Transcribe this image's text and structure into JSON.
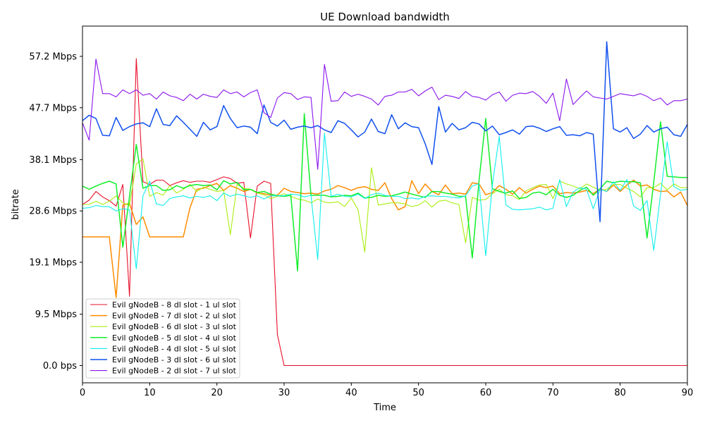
{
  "chart_data": {
    "type": "line",
    "title": "UE Download bandwidth",
    "xlabel": "Time",
    "ylabel": "bitrate",
    "xlim": [
      0,
      90
    ],
    "ylim": [
      -3.2,
      62.8
    ],
    "xticks": [
      0,
      10,
      20,
      30,
      40,
      50,
      60,
      70,
      80,
      90
    ],
    "yticks": [
      {
        "value": 0.0,
        "label": "0.0 bps"
      },
      {
        "value": 9.5,
        "label": "9.5 Mbps"
      },
      {
        "value": 19.1,
        "label": "19.1 Mbps"
      },
      {
        "value": 28.6,
        "label": "28.6 Mbps"
      },
      {
        "value": 38.1,
        "label": "38.1 Mbps"
      },
      {
        "value": 47.7,
        "label": "47.7 Mbps"
      },
      {
        "value": 57.2,
        "label": "57.2 Mbps"
      }
    ],
    "grid": false,
    "legend_position": "lower-left",
    "series": [
      {
        "name": "Evil gNodeB - 8 dl slot - 1 ul slot",
        "color": "#e8102a",
        "width": 1.1,
        "x": [
          0,
          1,
          2,
          3,
          4,
          5,
          6,
          7,
          8,
          9,
          10,
          11,
          12,
          13,
          14,
          15,
          16,
          17,
          18,
          19,
          20,
          21,
          22,
          23,
          24,
          25,
          26,
          27,
          28,
          29,
          30,
          35,
          40,
          45,
          50,
          55,
          60,
          65,
          70,
          75,
          80,
          85,
          90
        ],
        "y": [
          29.8,
          30.6,
          32.2,
          31.2,
          30.5,
          29.5,
          33.5,
          12.8,
          56.8,
          34.0,
          33.5,
          34.3,
          34.3,
          33.3,
          33.8,
          34.2,
          33.9,
          34.1,
          34.1,
          33.9,
          34.4,
          34.9,
          34.6,
          33.7,
          33.9,
          23.6,
          33.2,
          34.1,
          33.7,
          5.7,
          0.0,
          0.0,
          0.0,
          0.0,
          0.0,
          0.0,
          0.0,
          0.0,
          0.0,
          0.0,
          0.0,
          0.0,
          0.0
        ]
      },
      {
        "name": "Evil gNodeB - 7 dl slot - 2 ul slot",
        "color": "#ff8c00",
        "width": 1.5,
        "x": [
          0,
          1,
          2,
          3,
          4,
          5,
          6,
          7,
          8,
          9,
          10,
          11,
          12,
          13,
          14,
          15,
          16,
          17,
          18,
          19,
          20,
          21,
          22,
          23,
          24,
          25,
          26,
          27,
          28,
          29,
          30,
          31,
          32,
          33,
          34,
          35,
          36,
          37,
          38,
          39,
          40,
          41,
          42,
          43,
          44,
          45,
          46,
          47,
          48,
          49,
          50,
          51,
          52,
          53,
          54,
          55,
          56,
          57,
          58,
          59,
          60,
          61,
          62,
          63,
          64,
          65,
          66,
          67,
          68,
          69,
          70,
          71,
          72,
          73,
          74,
          75,
          76,
          77,
          78,
          79,
          80,
          81,
          82,
          83,
          84,
          85,
          86,
          87,
          88,
          89,
          90
        ],
        "y": [
          23.8,
          23.8,
          23.8,
          23.8,
          23.8,
          12.6,
          29.7,
          30.0,
          26.1,
          27.5,
          23.8,
          23.8,
          23.8,
          23.8,
          23.8,
          23.8,
          29.2,
          32.6,
          32.8,
          33.3,
          33.7,
          32.4,
          33.3,
          32.8,
          32.2,
          32.6,
          31.9,
          31.8,
          31.5,
          31.5,
          32.8,
          32.2,
          32.0,
          31.8,
          31.9,
          31.7,
          32.3,
          32.6,
          33.3,
          32.9,
          32.4,
          32.9,
          33.1,
          32.6,
          32.4,
          33.8,
          30.9,
          28.8,
          29.4,
          34.2,
          31.8,
          33.6,
          32.2,
          31.6,
          33.4,
          31.8,
          31.9,
          31.7,
          33.8,
          33.6,
          31.6,
          32.0,
          33.3,
          32.6,
          31.7,
          32.9,
          31.9,
          32.6,
          33.2,
          32.9,
          33.2,
          31.8,
          32.0,
          31.9,
          32.1,
          32.4,
          31.8,
          32.7,
          32.2,
          33.4,
          32.2,
          33.4,
          34.3,
          33.2,
          33.4,
          32.6,
          32.2,
          32.3,
          31.2,
          32.1,
          29.6
        ]
      },
      {
        "name": "Evil gNodeB - 6 dl slot - 3 ul slot",
        "color": "#aaee10",
        "width": 1.1,
        "x": [
          0,
          1,
          2,
          3,
          4,
          5,
          6,
          7,
          8,
          9,
          10,
          11,
          12,
          13,
          14,
          15,
          16,
          17,
          18,
          19,
          20,
          21,
          22,
          23,
          24,
          25,
          26,
          27,
          28,
          29,
          30,
          31,
          32,
          33,
          34,
          35,
          36,
          37,
          38,
          39,
          40,
          41,
          42,
          43,
          44,
          45,
          46,
          47,
          48,
          49,
          50,
          51,
          52,
          53,
          54,
          55,
          56,
          57,
          58,
          59,
          60,
          61,
          62,
          63,
          64,
          65,
          66,
          67,
          68,
          69,
          70,
          71,
          72,
          73,
          74,
          75,
          76,
          77,
          78,
          79,
          80,
          81,
          82,
          83,
          84,
          85,
          86,
          87,
          88,
          89,
          90
        ],
        "y": [
          29.8,
          29.8,
          30.4,
          29.8,
          30.4,
          31.4,
          30.1,
          29.6,
          37.3,
          38.2,
          31.3,
          32.0,
          31.5,
          33.3,
          31.9,
          32.6,
          33.5,
          32.2,
          33.0,
          32.6,
          32.2,
          32.4,
          24.2,
          33.5,
          32.8,
          32.6,
          31.9,
          31.6,
          30.9,
          31.3,
          31.8,
          31.3,
          30.8,
          30.6,
          30.1,
          30.8,
          30.2,
          30.1,
          30.3,
          29.4,
          31.0,
          28.8,
          21.0,
          36.6,
          29.7,
          29.9,
          30.1,
          30.1,
          29.9,
          29.4,
          29.7,
          30.5,
          29.3,
          30.4,
          30.6,
          30.1,
          29.8,
          22.7,
          31.1,
          30.6,
          30.7,
          31.8,
          32.6,
          31.6,
          31.4,
          30.7,
          32.3,
          32.9,
          33.4,
          33.5,
          30.9,
          34.1,
          33.6,
          33.2,
          32.7,
          33.6,
          33.0,
          32.4,
          32.6,
          33.5,
          33.5,
          32.8,
          32.2,
          31.2,
          32.9,
          32.9,
          33.7,
          32.5,
          33.6,
          32.9,
          32.9
        ]
      },
      {
        "name": "Evil gNodeB - 5 dl slot - 4 ul slot",
        "color": "#12ee2a",
        "width": 1.5,
        "x": [
          0,
          1,
          2,
          3,
          4,
          5,
          6,
          7,
          8,
          9,
          10,
          11,
          12,
          13,
          14,
          15,
          16,
          17,
          18,
          19,
          20,
          21,
          22,
          23,
          24,
          25,
          26,
          27,
          28,
          29,
          30,
          31,
          32,
          33,
          34,
          35,
          36,
          37,
          38,
          39,
          40,
          41,
          42,
          43,
          44,
          45,
          46,
          47,
          48,
          49,
          50,
          51,
          52,
          53,
          54,
          55,
          56,
          57,
          58,
          59,
          60,
          61,
          62,
          63,
          64,
          65,
          66,
          67,
          68,
          69,
          70,
          71,
          72,
          73,
          74,
          75,
          76,
          77,
          78,
          79,
          80,
          81,
          82,
          83,
          84,
          85,
          86,
          87,
          88,
          89,
          90
        ],
        "y": [
          33.2,
          32.6,
          33.2,
          33.7,
          34.1,
          33.6,
          21.9,
          31.3,
          40.9,
          32.8,
          33.3,
          33.3,
          32.4,
          32.5,
          33.3,
          32.8,
          33.3,
          33.5,
          33.3,
          33.4,
          32.5,
          34.2,
          33.6,
          33.9,
          32.5,
          32.6,
          32.0,
          32.2,
          31.7,
          31.4,
          31.3,
          31.5,
          17.5,
          46.6,
          31.5,
          31.5,
          31.5,
          31.2,
          31.3,
          31.5,
          31.4,
          31.9,
          31.0,
          31.1,
          31.5,
          31.3,
          31.4,
          31.7,
          32.1,
          31.7,
          31.4,
          31.1,
          32.2,
          32.2,
          31.9,
          31.7,
          31.3,
          31.3,
          19.9,
          34.2,
          45.7,
          32.7,
          32.2,
          31.9,
          32.3,
          30.9,
          31.1,
          31.9,
          32.1,
          31.6,
          32.6,
          31.5,
          31.1,
          31.5,
          32.4,
          33.0,
          31.5,
          32.7,
          34.1,
          33.8,
          34.1,
          34.0,
          34.0,
          33.8,
          23.6,
          33.9,
          45.1,
          35.0,
          34.9,
          34.8,
          34.8
        ]
      },
      {
        "name": "Evil gNodeB - 4 dl slot - 5 ul slot",
        "color": "#10eeee",
        "width": 1.1,
        "x": [
          0,
          1,
          2,
          3,
          4,
          5,
          6,
          7,
          8,
          9,
          10,
          11,
          12,
          13,
          14,
          15,
          16,
          17,
          18,
          19,
          20,
          21,
          22,
          23,
          24,
          25,
          26,
          27,
          28,
          29,
          30,
          31,
          32,
          33,
          34,
          35,
          36,
          37,
          38,
          39,
          40,
          41,
          42,
          43,
          44,
          45,
          46,
          47,
          48,
          49,
          50,
          51,
          52,
          53,
          54,
          55,
          56,
          57,
          58,
          59,
          60,
          61,
          62,
          63,
          64,
          65,
          66,
          67,
          68,
          69,
          70,
          71,
          72,
          73,
          74,
          75,
          76,
          77,
          78,
          79,
          80,
          81,
          82,
          83,
          84,
          85,
          86,
          87,
          88,
          89,
          90
        ],
        "y": [
          29.1,
          29.2,
          29.6,
          29.4,
          29.4,
          28.6,
          29.0,
          28.8,
          17.9,
          31.4,
          34.1,
          29.9,
          29.6,
          30.9,
          31.2,
          31.4,
          31.0,
          31.3,
          31.1,
          31.4,
          30.5,
          31.9,
          31.3,
          31.7,
          31.4,
          31.1,
          31.4,
          30.8,
          31.4,
          31.4,
          31.4,
          31.7,
          31.6,
          31.2,
          31.5,
          19.6,
          43.0,
          31.3,
          31.7,
          31.3,
          31.2,
          31.7,
          30.9,
          31.6,
          31.9,
          31.5,
          31.3,
          31.3,
          30.9,
          31.0,
          30.8,
          31.3,
          31.4,
          31.3,
          31.3,
          31.1,
          31.0,
          31.4,
          33.2,
          33.6,
          20.3,
          33.5,
          42.4,
          29.7,
          28.9,
          28.8,
          28.9,
          29.0,
          29.3,
          28.8,
          29.1,
          34.4,
          29.4,
          32.1,
          32.9,
          32.6,
          29.0,
          32.6,
          32.2,
          34.0,
          32.4,
          34.4,
          29.5,
          28.7,
          30.5,
          21.3,
          31.6,
          41.4,
          33.1,
          32.4,
          32.6
        ]
      },
      {
        "name": "Evil gNodeB - 3 dl slot - 6 ul slot",
        "color": "#1050f0",
        "width": 1.5,
        "x": [
          0,
          1,
          2,
          3,
          4,
          5,
          6,
          7,
          8,
          9,
          10,
          11,
          12,
          13,
          14,
          15,
          16,
          17,
          18,
          19,
          20,
          21,
          22,
          23,
          24,
          25,
          26,
          27,
          28,
          29,
          30,
          31,
          32,
          33,
          34,
          35,
          36,
          37,
          38,
          39,
          40,
          41,
          42,
          43,
          44,
          45,
          46,
          47,
          48,
          49,
          50,
          51,
          52,
          53,
          54,
          55,
          56,
          57,
          58,
          59,
          60,
          61,
          62,
          63,
          64,
          65,
          66,
          67,
          68,
          69,
          70,
          71,
          72,
          73,
          74,
          75,
          76,
          77,
          78,
          79,
          80,
          81,
          82,
          83,
          84,
          85,
          86,
          87,
          88,
          89,
          90
        ],
        "y": [
          45.3,
          46.3,
          45.7,
          42.6,
          42.5,
          45.9,
          43.5,
          44.2,
          44.7,
          44.9,
          44.2,
          47.5,
          44.6,
          44.4,
          46.2,
          45.0,
          43.7,
          42.4,
          45.0,
          43.6,
          44.2,
          48.1,
          45.7,
          44.0,
          44.3,
          44.1,
          42.9,
          48.2,
          45.0,
          44.3,
          45.4,
          43.7,
          44.1,
          44.3,
          44.0,
          44.4,
          43.6,
          43.1,
          45.3,
          44.8,
          43.6,
          42.3,
          43.2,
          45.6,
          43.3,
          42.9,
          46.4,
          43.8,
          44.9,
          44.2,
          44.0,
          41.0,
          37.2,
          47.9,
          43.2,
          44.8,
          43.6,
          44.0,
          45.0,
          44.7,
          43.4,
          44.3,
          42.7,
          43.1,
          43.6,
          42.8,
          44.2,
          44.3,
          43.9,
          43.3,
          43.8,
          44.2,
          42.6,
          42.7,
          42.5,
          43.1,
          42.8,
          26.6,
          59.9,
          43.8,
          43.2,
          44.0,
          42.0,
          42.8,
          44.4,
          43.2,
          43.8,
          44.1,
          42.7,
          42.4,
          44.6
        ]
      },
      {
        "name": "Evil gNodeB - 2 dl slot - 7 ul slot",
        "color": "#8a14ee",
        "width": 1.1,
        "x": [
          0,
          1,
          2,
          3,
          4,
          5,
          6,
          7,
          8,
          9,
          10,
          11,
          12,
          13,
          14,
          15,
          16,
          17,
          18,
          19,
          20,
          21,
          22,
          23,
          24,
          25,
          26,
          27,
          28,
          29,
          30,
          31,
          32,
          33,
          34,
          35,
          36,
          37,
          38,
          39,
          40,
          41,
          42,
          43,
          44,
          45,
          46,
          47,
          48,
          49,
          50,
          51,
          52,
          53,
          54,
          55,
          56,
          57,
          58,
          59,
          60,
          61,
          62,
          63,
          64,
          65,
          66,
          67,
          68,
          69,
          70,
          71,
          72,
          73,
          74,
          75,
          76,
          77,
          78,
          79,
          80,
          81,
          82,
          83,
          84,
          85,
          86,
          87,
          88,
          89,
          90
        ],
        "y": [
          44.9,
          41.7,
          56.7,
          50.3,
          50.3,
          49.7,
          51.0,
          50.3,
          51.0,
          50.0,
          50.3,
          49.3,
          50.6,
          49.9,
          49.6,
          49.0,
          50.2,
          49.3,
          50.2,
          49.8,
          49.6,
          51.0,
          50.3,
          50.6,
          49.7,
          50.5,
          51.0,
          46.8,
          45.9,
          49.5,
          50.5,
          50.3,
          49.2,
          49.7,
          49.6,
          36.3,
          55.7,
          48.9,
          49.0,
          50.6,
          49.8,
          50.2,
          49.8,
          49.3,
          48.2,
          49.8,
          50.0,
          50.6,
          50.6,
          51.1,
          49.9,
          50.8,
          51.5,
          49.2,
          50.0,
          49.8,
          49.4,
          50.7,
          49.8,
          49.6,
          49.1,
          50.1,
          50.6,
          48.9,
          50.0,
          50.4,
          50.3,
          50.7,
          49.8,
          48.5,
          50.4,
          45.3,
          53.0,
          48.3,
          49.6,
          50.8,
          49.7,
          49.5,
          49.3,
          49.8,
          50.3,
          50.1,
          49.9,
          50.3,
          49.8,
          49.0,
          49.5,
          48.2,
          49.0,
          49.0,
          49.3
        ]
      }
    ]
  }
}
